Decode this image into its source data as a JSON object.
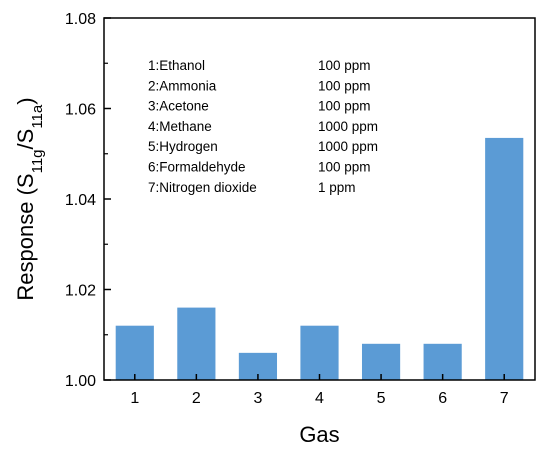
{
  "chart_data": {
    "type": "bar",
    "title": "",
    "xlabel": "Gas",
    "ylabel": {
      "main": "Response (S",
      "sub1": "11g",
      "mid": "/S",
      "sub2": "11a",
      "end": ")"
    },
    "ylim": [
      1.0,
      1.08
    ],
    "yticks": [
      "1.00",
      "1.02",
      "1.04",
      "1.06",
      "1.08"
    ],
    "categories": [
      "1",
      "2",
      "3",
      "4",
      "5",
      "6",
      "7"
    ],
    "values": [
      1.012,
      1.016,
      1.006,
      1.012,
      1.008,
      1.008,
      1.0535
    ],
    "bar_color": "#5b9bd5",
    "grid": false,
    "legend": {
      "placement": "top-left",
      "entries": [
        {
          "gas": "1:Ethanol",
          "conc": "100 ppm"
        },
        {
          "gas": "2:Ammonia",
          "conc": "100 ppm"
        },
        {
          "gas": "3:Acetone",
          "conc": "100 ppm"
        },
        {
          "gas": "4:Methane",
          "conc": "1000 ppm"
        },
        {
          "gas": "5:Hydrogen",
          "conc": "1000 ppm"
        },
        {
          "gas": "6:Formaldehyde",
          "conc": "100 ppm"
        },
        {
          "gas": "7:Nitrogen dioxide",
          "conc": "1 ppm"
        }
      ]
    }
  }
}
